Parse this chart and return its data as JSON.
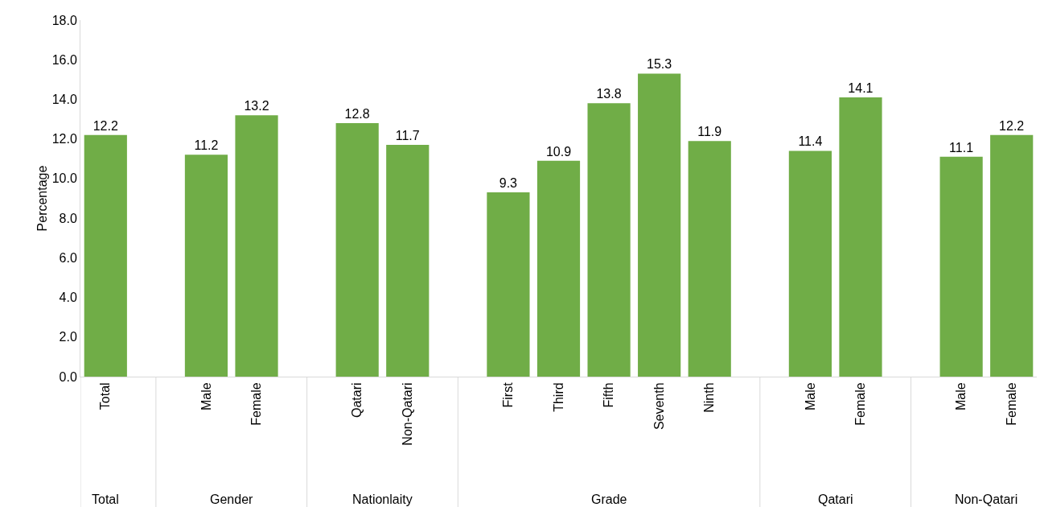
{
  "chart_data": {
    "type": "bar",
    "ylabel": "Percentage",
    "categories": [
      "Total",
      null,
      "Male",
      "Female",
      null,
      "Qatari",
      "Non-Qatari",
      null,
      "First",
      "Third",
      "Fifth",
      "Seventh",
      "Ninth",
      null,
      "Male",
      "Female",
      null,
      "Male",
      "Female"
    ],
    "values": [
      12.2,
      null,
      11.2,
      13.2,
      null,
      12.8,
      11.7,
      null,
      9.3,
      10.9,
      13.8,
      15.3,
      11.9,
      null,
      11.4,
      14.1,
      null,
      11.1,
      12.2
    ],
    "color": "#70ad47",
    "ylim": [
      0,
      18
    ],
    "yticks": [
      {
        "value": 0,
        "label": "0.0"
      },
      {
        "value": 2,
        "label": "2.0"
      },
      {
        "value": 4,
        "label": "4.0"
      },
      {
        "value": 6,
        "label": "6.0"
      },
      {
        "value": 8,
        "label": "8.0"
      },
      {
        "value": 10,
        "label": "10.0"
      },
      {
        "value": 12,
        "label": "12.0"
      },
      {
        "value": 14,
        "label": "14.0"
      },
      {
        "value": 16,
        "label": "16.0"
      },
      {
        "value": 18,
        "label": "18.0"
      }
    ],
    "data_labels": true,
    "grid": false,
    "legend": false,
    "annotations": [
      "Total",
      "Gender",
      "Nationlaity",
      "Grade",
      "Qatari",
      "Non-Qatari"
    ]
  }
}
